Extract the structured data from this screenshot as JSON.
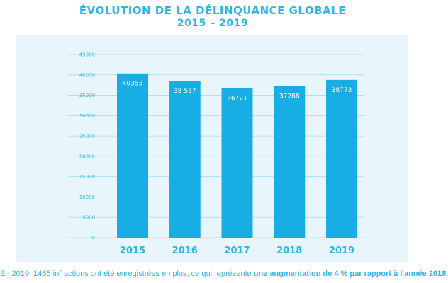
{
  "title_line1": "ÉVOLUTION DE LA DÉLINQUANCE GLOBALE",
  "title_line2": "2015 – 2019",
  "colors": {
    "bar": "#18aee4",
    "accent": "#2fb6e6",
    "panel": "#e8f6fb",
    "grid": "#9fdcf2"
  },
  "chart_data": {
    "type": "bar",
    "categories": [
      "2015",
      "2016",
      "2017",
      "2018",
      "2019"
    ],
    "values": [
      40353,
      38537,
      36721,
      37288,
      38773
    ],
    "value_labels": [
      "40353",
      "38 537",
      "36721",
      "37288",
      "38773"
    ],
    "ylim": [
      0,
      45000
    ],
    "yticks": [
      0,
      5000,
      10000,
      15000,
      20000,
      25000,
      30000,
      35000,
      40000,
      45000
    ],
    "grid": true,
    "xlabel": "",
    "ylabel": ""
  },
  "caption": {
    "text_before": "En 2019, 1485 infractions ont été enregistrées en plus, ce qui représente ",
    "text_bold": "une augmentation de 4 % par rapport à l'année 2018."
  }
}
